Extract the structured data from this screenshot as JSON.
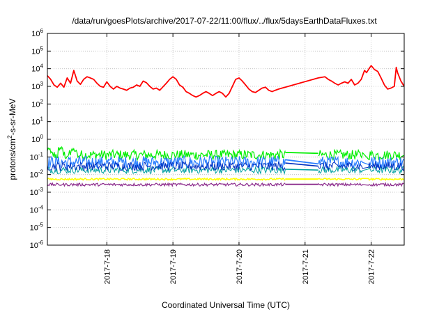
{
  "chart_data": {
    "type": "line",
    "title": "/data/run/goesPlots/archive/2017-07-22/11:00/flux/../flux/5daysEarthDataFluxes.txt",
    "xlabel": "Coordinated Universal Time (UTC)",
    "ylabel": "protons/cm2-s-sr-MeV",
    "ylabel_parts": {
      "pre": "protons/cm",
      "sup": "2",
      "post": "-s-sr-MeV"
    },
    "yscale": "log",
    "ylim_exp": [
      -6,
      6
    ],
    "y_tick_exponents": [
      -6,
      -5,
      -4,
      -3,
      -2,
      -1,
      0,
      1,
      2,
      3,
      4,
      5,
      6
    ],
    "y_tick_base": "10",
    "xlim_days": [
      17.1,
      22.5
    ],
    "x_ticks": [
      {
        "day": 18,
        "label": "2017-7-18"
      },
      {
        "day": 19,
        "label": "2017-7-19"
      },
      {
        "day": 20,
        "label": "2017-7-20"
      },
      {
        "day": 21,
        "label": "2017-7-21"
      },
      {
        "day": 22,
        "label": "2017-7-22"
      }
    ],
    "grid": true,
    "data_gap_days": [
      20.7,
      21.2
    ],
    "series": [
      {
        "color": "#ff0000",
        "width": 1.8,
        "points": [
          [
            17.1,
            4000
          ],
          [
            17.15,
            2500
          ],
          [
            17.2,
            1200
          ],
          [
            17.25,
            900
          ],
          [
            17.3,
            1500
          ],
          [
            17.35,
            900
          ],
          [
            17.4,
            3000
          ],
          [
            17.45,
            1500
          ],
          [
            17.5,
            8000
          ],
          [
            17.55,
            2000
          ],
          [
            17.6,
            1300
          ],
          [
            17.65,
            2500
          ],
          [
            17.7,
            3500
          ],
          [
            17.75,
            3000
          ],
          [
            17.8,
            2500
          ],
          [
            17.85,
            1500
          ],
          [
            17.9,
            1000
          ],
          [
            17.95,
            900
          ],
          [
            18.0,
            1800
          ],
          [
            18.05,
            1000
          ],
          [
            18.1,
            700
          ],
          [
            18.15,
            1000
          ],
          [
            18.2,
            800
          ],
          [
            18.25,
            700
          ],
          [
            18.3,
            600
          ],
          [
            18.35,
            800
          ],
          [
            18.4,
            900
          ],
          [
            18.45,
            1200
          ],
          [
            18.5,
            1000
          ],
          [
            18.55,
            2000
          ],
          [
            18.6,
            1600
          ],
          [
            18.65,
            1000
          ],
          [
            18.7,
            700
          ],
          [
            18.75,
            800
          ],
          [
            18.8,
            600
          ],
          [
            18.9,
            1500
          ],
          [
            18.95,
            2500
          ],
          [
            19.0,
            3500
          ],
          [
            19.05,
            2500
          ],
          [
            19.1,
            1200
          ],
          [
            19.15,
            900
          ],
          [
            19.2,
            500
          ],
          [
            19.25,
            400
          ],
          [
            19.3,
            300
          ],
          [
            19.35,
            250
          ],
          [
            19.4,
            300
          ],
          [
            19.45,
            400
          ],
          [
            19.5,
            500
          ],
          [
            19.55,
            400
          ],
          [
            19.6,
            300
          ],
          [
            19.65,
            400
          ],
          [
            19.7,
            500
          ],
          [
            19.75,
            400
          ],
          [
            19.8,
            250
          ],
          [
            19.85,
            400
          ],
          [
            19.9,
            1000
          ],
          [
            19.95,
            2500
          ],
          [
            20.0,
            3000
          ],
          [
            20.05,
            2000
          ],
          [
            20.1,
            1200
          ],
          [
            20.15,
            700
          ],
          [
            20.2,
            500
          ],
          [
            20.25,
            450
          ],
          [
            20.3,
            600
          ],
          [
            20.35,
            800
          ],
          [
            20.4,
            900
          ],
          [
            20.45,
            600
          ],
          [
            20.5,
            500
          ],
          [
            20.55,
            600
          ],
          [
            20.6,
            700
          ],
          [
            20.65,
            800
          ],
          [
            20.7,
            900
          ],
          [
            21.2,
            3000
          ],
          [
            21.3,
            3500
          ],
          [
            21.35,
            2500
          ],
          [
            21.4,
            2000
          ],
          [
            21.45,
            1500
          ],
          [
            21.5,
            1200
          ],
          [
            21.55,
            1500
          ],
          [
            21.6,
            1800
          ],
          [
            21.65,
            1500
          ],
          [
            21.7,
            2500
          ],
          [
            21.75,
            1200
          ],
          [
            21.8,
            1500
          ],
          [
            21.85,
            2500
          ],
          [
            21.9,
            8000
          ],
          [
            21.93,
            6000
          ],
          [
            21.96,
            9000
          ],
          [
            22.0,
            15000
          ],
          [
            22.05,
            9000
          ],
          [
            22.1,
            7000
          ],
          [
            22.15,
            3000
          ],
          [
            22.2,
            1200
          ],
          [
            22.25,
            700
          ],
          [
            22.3,
            800
          ],
          [
            22.35,
            1000
          ],
          [
            22.38,
            12000
          ],
          [
            22.4,
            6000
          ],
          [
            22.45,
            2000
          ],
          [
            22.5,
            1000
          ]
        ]
      },
      {
        "color": "#00ee00",
        "width": 1.2,
        "base": 0.13,
        "amp": 0.28,
        "gap_line": [
          [
            20.7,
            0.18
          ],
          [
            21.2,
            0.16
          ]
        ],
        "overrides": [
          [
            17.1,
            0.25
          ],
          [
            17.3,
            0.3
          ],
          [
            17.5,
            0.25
          ]
        ]
      },
      {
        "color": "#2a7fff",
        "width": 1.2,
        "base": 0.05,
        "amp": 0.35,
        "gap_line": [
          [
            20.7,
            0.07
          ],
          [
            21.2,
            0.04
          ]
        ]
      },
      {
        "color": "#00a0a0",
        "width": 1.0,
        "base": 0.018,
        "amp": 0.2,
        "gap_line": [
          [
            20.7,
            0.02
          ],
          [
            21.2,
            0.018
          ]
        ]
      },
      {
        "color": "#0030c0",
        "width": 1.0,
        "base": 0.03,
        "amp": 0.25,
        "gap_line": [
          [
            20.7,
            0.045
          ],
          [
            21.2,
            0.03
          ]
        ]
      },
      {
        "color": "#ffff00",
        "width": 1.6,
        "base": 0.0055,
        "amp": 0.05,
        "gap_line": [
          [
            20.7,
            0.0055
          ],
          [
            21.2,
            0.0055
          ]
        ]
      },
      {
        "color": "#8b2a8b",
        "width": 1.2,
        "base": 0.0027,
        "amp": 0.08,
        "gap_line": [
          [
            20.7,
            0.0028
          ],
          [
            21.2,
            0.0028
          ]
        ]
      }
    ]
  }
}
